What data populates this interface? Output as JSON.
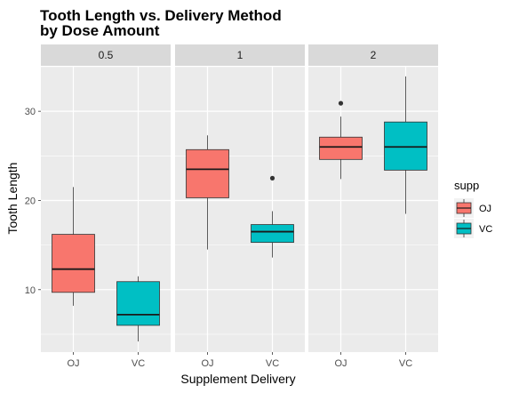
{
  "chart_data": {
    "type": "boxplot",
    "title_lines": [
      "Tooth Length vs. Delivery Method",
      "by Dose Amount"
    ],
    "xlabel": "Supplement Delivery",
    "ylabel": "Tooth Length",
    "ylim": [
      3,
      35
    ],
    "yticks": [
      10,
      20,
      30
    ],
    "categories": [
      "OJ",
      "VC"
    ],
    "legend": {
      "title": "supp",
      "position": "right",
      "entries": [
        {
          "label": "OJ",
          "color": "#F8766D"
        },
        {
          "label": "VC",
          "color": "#00BFC4"
        }
      ]
    },
    "panels": [
      {
        "label": "0.5",
        "boxes": [
          {
            "group": "OJ",
            "min": 8.2,
            "q1": 9.7,
            "median": 12.3,
            "q3": 16.2,
            "max": 21.5,
            "outliers": []
          },
          {
            "group": "VC",
            "min": 4.2,
            "q1": 6.0,
            "median": 7.2,
            "q3": 10.9,
            "max": 11.5,
            "outliers": []
          }
        ]
      },
      {
        "label": "1",
        "boxes": [
          {
            "group": "OJ",
            "min": 14.5,
            "q1": 20.3,
            "median": 23.5,
            "q3": 25.7,
            "max": 27.3,
            "outliers": []
          },
          {
            "group": "VC",
            "min": 13.6,
            "q1": 15.3,
            "median": 16.5,
            "q3": 17.3,
            "max": 18.8,
            "outliers": [
              22.5
            ]
          }
        ]
      },
      {
        "label": "2",
        "boxes": [
          {
            "group": "OJ",
            "min": 22.4,
            "q1": 24.6,
            "median": 26.0,
            "q3": 27.1,
            "max": 29.4,
            "outliers": [
              30.9
            ]
          },
          {
            "group": "VC",
            "min": 18.5,
            "q1": 23.4,
            "median": 26.0,
            "q3": 28.8,
            "max": 33.9,
            "outliers": []
          }
        ]
      }
    ],
    "colors": {
      "panel_bg": "#EBEBEB",
      "strip_bg": "#D9D9D9",
      "grid": "#FFFFFF"
    }
  }
}
